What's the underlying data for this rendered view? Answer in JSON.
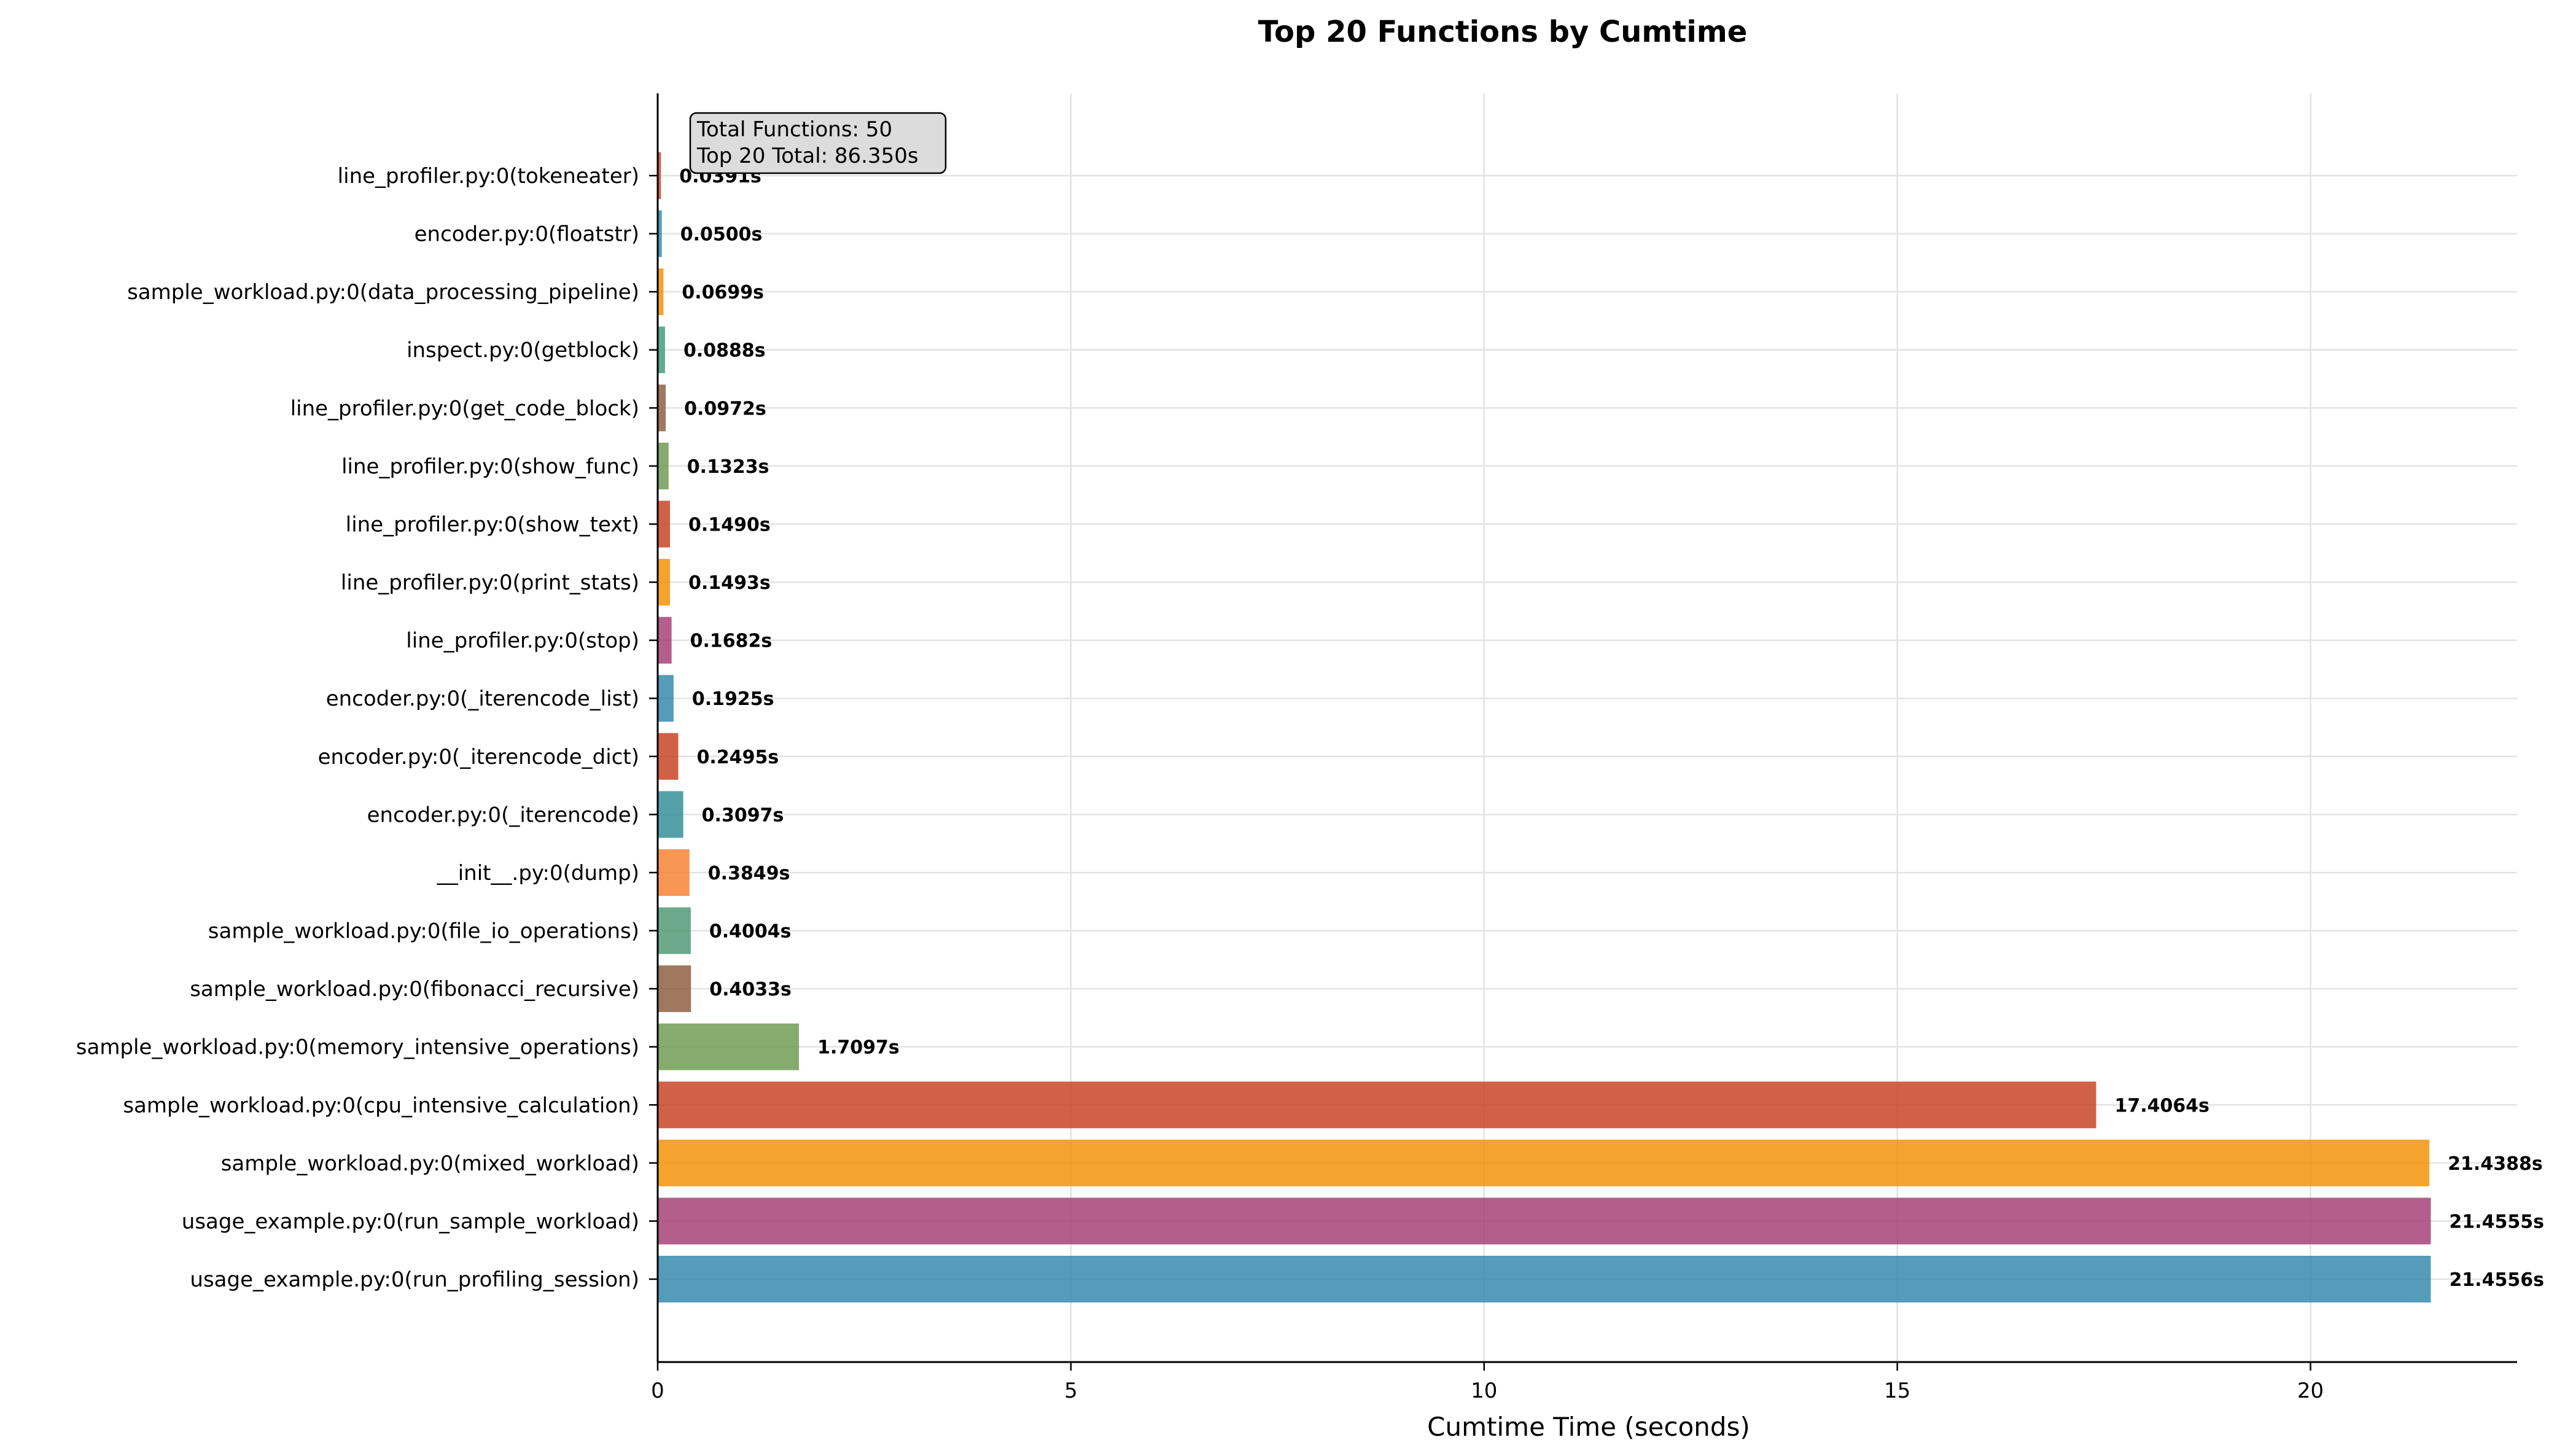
{
  "chart_data": {
    "type": "bar",
    "orientation": "horizontal",
    "title": "Top 20 Functions by Cumtime",
    "xlabel": "Cumtime Time (seconds)",
    "ylabel": "",
    "xlim": [
      0,
      22.5
    ],
    "xticks": [
      0,
      5,
      10,
      15,
      20
    ],
    "grid": true,
    "value_suffix": "s",
    "annotation": {
      "lines": [
        "Total Functions: 50",
        "Top 20 Total: 86.350s"
      ],
      "placement": "top-left"
    },
    "categories": [
      "line_profiler.py:0(tokeneater)",
      "encoder.py:0(floatstr)",
      "sample_workload.py:0(data_processing_pipeline)",
      "inspect.py:0(getblock)",
      "line_profiler.py:0(get_code_block)",
      "line_profiler.py:0(show_func)",
      "line_profiler.py:0(show_text)",
      "line_profiler.py:0(print_stats)",
      "line_profiler.py:0(stop)",
      "encoder.py:0(_iterencode_list)",
      "encoder.py:0(_iterencode_dict)",
      "encoder.py:0(_iterencode)",
      "__init__.py:0(dump)",
      "sample_workload.py:0(file_io_operations)",
      "sample_workload.py:0(fibonacci_recursive)",
      "sample_workload.py:0(memory_intensive_operations)",
      "sample_workload.py:0(cpu_intensive_calculation)",
      "sample_workload.py:0(mixed_workload)",
      "usage_example.py:0(run_sample_workload)",
      "usage_example.py:0(run_profiling_session)"
    ],
    "values": [
      0.0391,
      0.05,
      0.0699,
      0.0888,
      0.0972,
      0.1323,
      0.149,
      0.1493,
      0.1682,
      0.1925,
      0.2495,
      0.3097,
      0.3849,
      0.4004,
      0.4033,
      1.7097,
      17.4064,
      21.4388,
      21.4555,
      21.4556
    ],
    "value_labels": [
      "0.0391s",
      "0.0500s",
      "0.0699s",
      "0.0888s",
      "0.0972s",
      "0.1323s",
      "0.1490s",
      "0.1493s",
      "0.1682s",
      "0.1925s",
      "0.2495s",
      "0.3097s",
      "0.3849s",
      "0.4004s",
      "0.4033s",
      "1.7097s",
      "17.4064s",
      "21.4388s",
      "21.4555s",
      "21.4556s"
    ],
    "colors": [
      "#C73E1D",
      "#2E86AB",
      "#F18F01",
      "#3A9A7A",
      "#8B5A3C",
      "#6A994E",
      "#C73E1D",
      "#F18F01",
      "#A23B72",
      "#2E86AB",
      "#C73E1D",
      "#2E8B95",
      "#F77F2D",
      "#4A9670",
      "#8B5A3C",
      "#6A994E",
      "#C73E1D",
      "#F18F01",
      "#A23B72",
      "#2E86AB"
    ]
  }
}
